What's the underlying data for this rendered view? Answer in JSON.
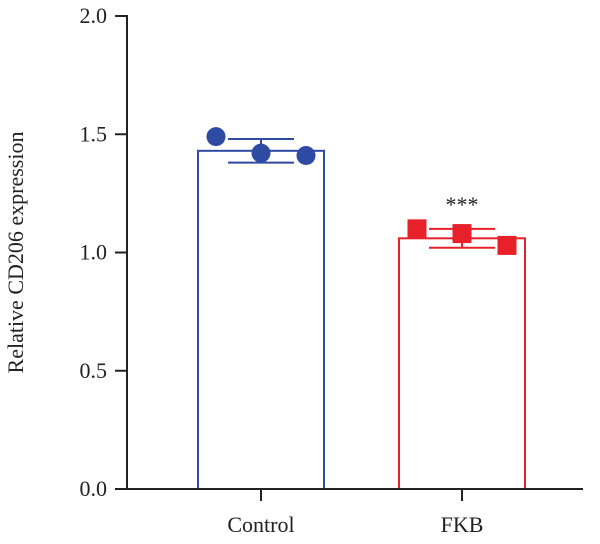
{
  "chart_data": {
    "type": "bar",
    "title": "",
    "xlabel": "",
    "ylabel": "Relative CD206 expression",
    "ylim": [
      0,
      2.0
    ],
    "yticks": [
      "0.0",
      "0.5",
      "1.0",
      "1.5",
      "2.0"
    ],
    "categories": [
      "Control",
      "FKB"
    ],
    "series": [
      {
        "category": "Control",
        "mean": 1.43,
        "error": 0.05,
        "points": [
          1.49,
          1.42,
          1.41
        ],
        "marker": "circle",
        "color": "#2e4aa3"
      },
      {
        "category": "FKB",
        "mean": 1.06,
        "error": 0.04,
        "points": [
          1.1,
          1.08,
          1.03
        ],
        "marker": "square",
        "color": "#e8202a"
      }
    ],
    "annotations": [
      {
        "category": "FKB",
        "text": "***"
      }
    ],
    "grid": false,
    "legend": "none"
  }
}
